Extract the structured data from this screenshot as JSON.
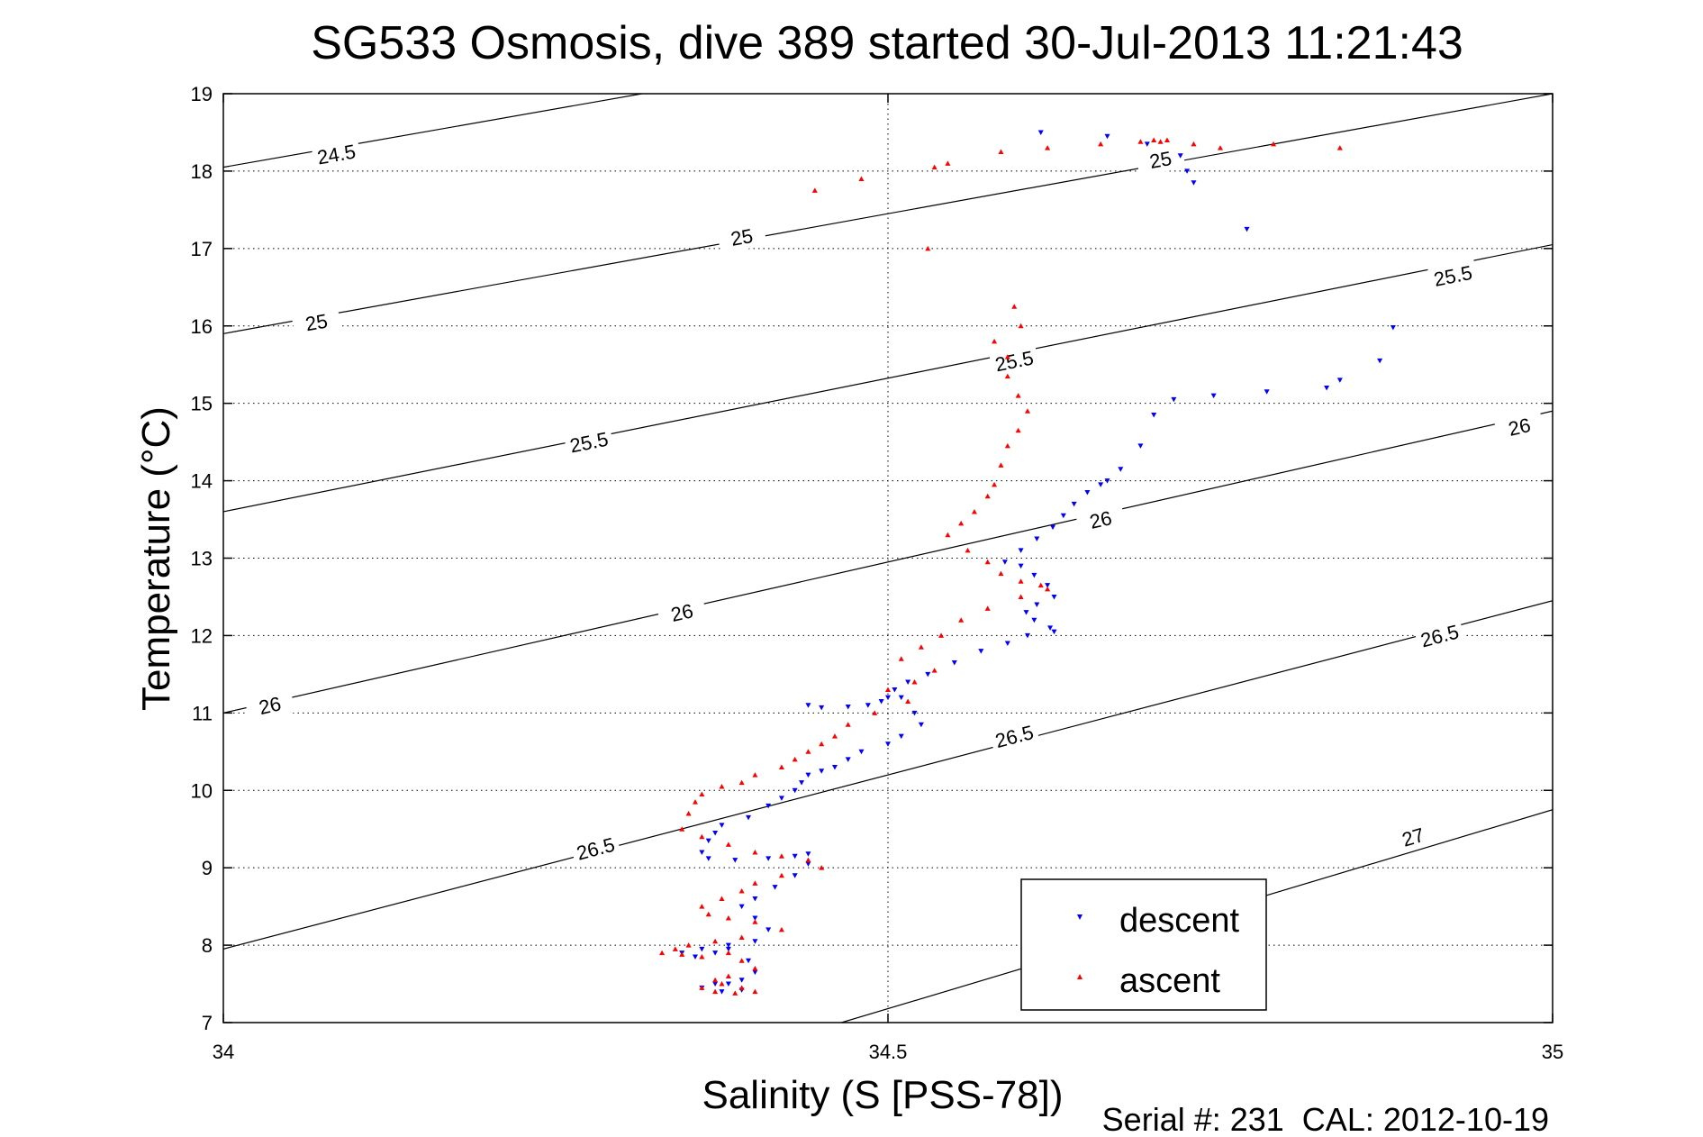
{
  "chart_data": {
    "type": "scatter",
    "title": "SG533 Osmosis, dive 389 started 30-Jul-2013 11:21:43",
    "xlabel": "Salinity (S [PSS-78])",
    "ylabel": "Temperature (°C)",
    "xlim": [
      34,
      35
    ],
    "ylim": [
      7,
      19
    ],
    "x_ticks": [
      "34",
      "34.5",
      "35"
    ],
    "y_ticks": [
      "7",
      "8",
      "9",
      "10",
      "11",
      "12",
      "13",
      "14",
      "15",
      "16",
      "17",
      "18",
      "19"
    ],
    "grid": "dotted",
    "legend_position": "bottom-right",
    "footer": "Serial #: 231  CAL: 2012-10-19",
    "density_contours": [
      {
        "label": "24.5",
        "points": [
          [
            34.0,
            18.05
          ],
          [
            34.315,
            19.0
          ]
        ],
        "label_at": [
          [
            34.085,
            18.22
          ]
        ]
      },
      {
        "label": "25",
        "points": [
          [
            34.0,
            15.9
          ],
          [
            35.0,
            19.0
          ]
        ],
        "label_at": [
          [
            34.07,
            16.05
          ],
          [
            34.39,
            17.15
          ],
          [
            34.705,
            18.15
          ]
        ]
      },
      {
        "label": "25.5",
        "points": [
          [
            34.0,
            13.6
          ],
          [
            35.0,
            17.05
          ]
        ],
        "label_at": [
          [
            34.275,
            14.5
          ],
          [
            34.595,
            15.55
          ],
          [
            34.925,
            16.65
          ]
        ]
      },
      {
        "label": "26",
        "points": [
          [
            34.0,
            11.0
          ],
          [
            35.0,
            14.9
          ]
        ],
        "label_at": [
          [
            34.035,
            11.1
          ],
          [
            34.345,
            12.3
          ],
          [
            34.66,
            13.5
          ],
          [
            34.975,
            14.7
          ]
        ]
      },
      {
        "label": "26.5",
        "points": [
          [
            34.0,
            7.95
          ],
          [
            35.0,
            12.45
          ]
        ],
        "label_at": [
          [
            34.28,
            9.25
          ],
          [
            34.595,
            10.7
          ],
          [
            34.915,
            12.0
          ]
        ]
      },
      {
        "label": "27",
        "points": [
          [
            34.465,
            7.0
          ],
          [
            35.0,
            9.75
          ]
        ],
        "label_at": [
          [
            34.895,
            9.4
          ]
        ]
      }
    ],
    "series": [
      {
        "name": "descent",
        "color": "#0000ff",
        "marker": "triangle-down",
        "x": [
          34.615,
          34.665,
          34.695,
          34.72,
          34.725,
          34.73,
          34.77,
          34.88,
          34.87,
          34.84,
          34.83,
          34.785,
          34.745,
          34.715,
          34.7,
          34.69,
          34.675,
          34.665,
          34.66,
          34.65,
          34.64,
          34.632,
          34.624,
          34.612,
          34.6,
          34.588,
          34.6,
          34.61,
          34.62,
          34.625,
          34.612,
          34.604,
          34.61,
          34.622,
          34.625,
          34.605,
          34.59,
          34.57,
          34.55,
          34.53,
          34.515,
          34.505,
          34.5,
          34.495,
          34.485,
          34.47,
          34.45,
          34.44,
          34.51,
          34.52,
          34.525,
          34.51,
          34.5,
          34.48,
          34.47,
          34.46,
          34.45,
          34.44,
          34.435,
          34.43,
          34.42,
          34.41,
          34.395,
          34.375,
          34.37,
          34.365,
          34.36,
          34.365,
          34.385,
          34.41,
          34.43,
          34.44,
          34.44,
          34.43,
          34.415,
          34.4,
          34.39,
          34.4,
          34.41,
          34.4,
          34.38,
          34.36,
          34.345,
          34.355,
          34.37,
          34.38,
          34.395,
          34.4,
          34.39,
          34.37,
          34.36,
          34.375,
          34.39,
          34.38
        ],
        "y": [
          18.5,
          18.45,
          18.35,
          18.2,
          18.0,
          17.85,
          17.25,
          15.98,
          15.55,
          15.3,
          15.2,
          15.15,
          15.1,
          15.05,
          14.85,
          14.45,
          14.15,
          14.0,
          13.95,
          13.85,
          13.7,
          13.55,
          13.4,
          13.25,
          13.1,
          12.95,
          12.9,
          12.78,
          12.65,
          12.5,
          12.4,
          12.3,
          12.2,
          12.1,
          12.05,
          12.0,
          11.9,
          11.8,
          11.65,
          11.5,
          11.4,
          11.3,
          11.2,
          11.15,
          11.1,
          11.08,
          11.07,
          11.1,
          11.2,
          11.0,
          10.85,
          10.7,
          10.6,
          10.5,
          10.4,
          10.3,
          10.25,
          10.2,
          10.1,
          10.0,
          9.9,
          9.8,
          9.65,
          9.55,
          9.45,
          9.35,
          9.2,
          9.12,
          9.1,
          9.12,
          9.15,
          9.18,
          9.05,
          8.9,
          8.75,
          8.6,
          8.5,
          8.35,
          8.2,
          8.05,
          8.0,
          7.95,
          7.9,
          7.85,
          7.9,
          7.95,
          7.8,
          7.65,
          7.55,
          7.5,
          7.45,
          7.4,
          7.42,
          7.5
        ]
      },
      {
        "name": "ascent",
        "color": "#ff0000",
        "marker": "triangle-up",
        "x": [
          34.445,
          34.48,
          34.535,
          34.545,
          34.585,
          34.62,
          34.66,
          34.69,
          34.7,
          34.705,
          34.71,
          34.73,
          34.75,
          34.79,
          34.84,
          34.53,
          34.595,
          34.6,
          34.58,
          34.59,
          34.59,
          34.598,
          34.605,
          34.598,
          34.59,
          34.585,
          34.58,
          34.575,
          34.565,
          34.555,
          34.545,
          34.56,
          34.575,
          34.585,
          34.6,
          34.615,
          34.62,
          34.6,
          34.575,
          34.555,
          34.54,
          34.525,
          34.51,
          34.535,
          34.52,
          34.5,
          34.515,
          34.49,
          34.47,
          34.46,
          34.45,
          34.44,
          34.43,
          34.42,
          34.4,
          34.39,
          34.375,
          34.36,
          34.355,
          34.35,
          34.345,
          34.36,
          34.38,
          34.4,
          34.42,
          34.44,
          34.45,
          34.42,
          34.4,
          34.39,
          34.375,
          34.36,
          34.365,
          34.38,
          34.4,
          34.42,
          34.39,
          34.37,
          34.35,
          34.34,
          34.33,
          34.345,
          34.36,
          34.38,
          34.39,
          34.4,
          34.38,
          34.37,
          34.375,
          34.39,
          34.4,
          34.385,
          34.37,
          34.36
        ],
        "y": [
          17.75,
          17.9,
          18.05,
          18.1,
          18.25,
          18.3,
          18.35,
          18.38,
          18.4,
          18.38,
          18.4,
          18.35,
          18.3,
          18.35,
          18.3,
          17.0,
          16.25,
          16.0,
          15.8,
          15.6,
          15.35,
          15.1,
          14.9,
          14.65,
          14.45,
          14.2,
          13.95,
          13.8,
          13.6,
          13.45,
          13.3,
          13.1,
          12.95,
          12.8,
          12.7,
          12.65,
          12.6,
          12.5,
          12.35,
          12.2,
          12.0,
          11.85,
          11.7,
          11.55,
          11.4,
          11.3,
          11.15,
          11.0,
          10.85,
          10.7,
          10.6,
          10.5,
          10.4,
          10.3,
          10.2,
          10.1,
          10.05,
          9.95,
          9.85,
          9.7,
          9.5,
          9.4,
          9.3,
          9.2,
          9.15,
          9.1,
          9.0,
          8.9,
          8.8,
          8.7,
          8.6,
          8.5,
          8.4,
          8.35,
          8.3,
          8.2,
          8.1,
          8.05,
          8.0,
          7.95,
          7.9,
          7.88,
          7.85,
          7.9,
          7.8,
          7.7,
          7.6,
          7.55,
          7.5,
          7.45,
          7.4,
          7.38,
          7.4,
          7.45
        ]
      }
    ]
  }
}
